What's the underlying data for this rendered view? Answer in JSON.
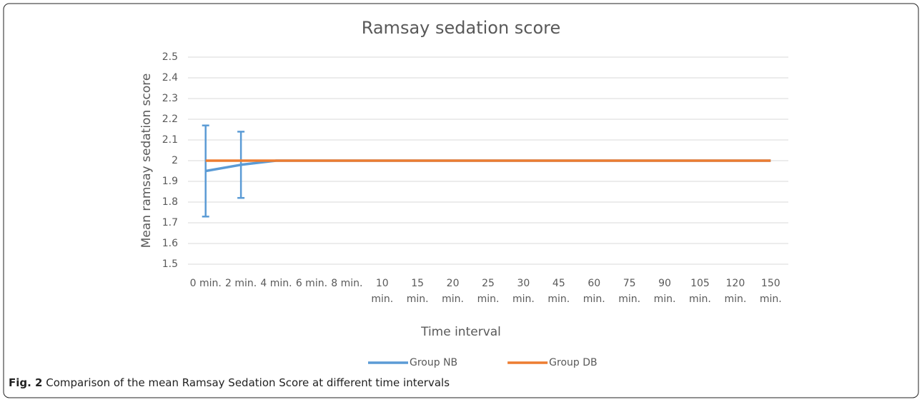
{
  "chart_data": {
    "type": "line",
    "title": "Ramsay sedation score",
    "ylabel": "Mean ramsay sedation score",
    "xlabel": "Time interval",
    "categories": [
      "0 min.",
      "2 min.",
      "4 min.",
      "6 min.",
      "8 min.",
      "10 min.",
      "15 min.",
      "20 min.",
      "25 min.",
      "30 min.",
      "45 min.",
      "60 min.",
      "75 min.",
      "90 min.",
      "105 min.",
      "120 min.",
      "150 min."
    ],
    "series": [
      {
        "name": "Group NB",
        "color": "#5b9bd5",
        "values": [
          1.95,
          1.98,
          2,
          2,
          2,
          2,
          2,
          2,
          2,
          2,
          2,
          2,
          2,
          2,
          2,
          2,
          2
        ],
        "errors": [
          0.22,
          0.16,
          null,
          null,
          null,
          null,
          null,
          null,
          null,
          null,
          null,
          null,
          null,
          null,
          null,
          null,
          null
        ]
      },
      {
        "name": "Group DB",
        "color": "#ed7d31",
        "values": [
          2,
          2,
          2,
          2,
          2,
          2,
          2,
          2,
          2,
          2,
          2,
          2,
          2,
          2,
          2,
          2,
          2
        ]
      }
    ],
    "ylim": [
      1.5,
      2.5
    ],
    "yticks": [
      1.5,
      1.6,
      1.7,
      1.8,
      1.9,
      2,
      2.1,
      2.2,
      2.3,
      2.4,
      2.5
    ],
    "grid": true,
    "legend": "bottom"
  },
  "caption": {
    "label": "Fig. 2",
    "text": "Comparison of the mean Ramsay Sedation Score at different time intervals"
  }
}
